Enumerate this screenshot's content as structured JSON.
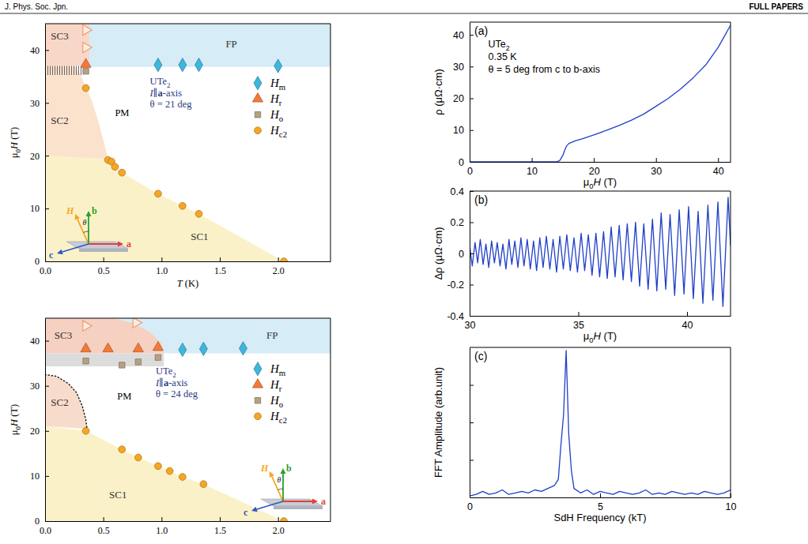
{
  "header": {
    "journal": "J. Phys. Soc. Jpn.",
    "section": "FULL PAPERS"
  },
  "chart_data": [
    {
      "type": "scatter",
      "xlabel": "T (K)",
      "ylabel": "μ0H (T)",
      "xlim": [
        0,
        2.45
      ],
      "ylim": [
        0,
        45
      ],
      "xticks": [
        {
          "value": 0,
          "label": "0.0"
        },
        0.5,
        {
          "value": 1,
          "label": "1.0"
        },
        1.5,
        {
          "value": 2,
          "label": "2.0"
        }
      ],
      "yticks": [
        0,
        10,
        20,
        30,
        40
      ],
      "legend": "right",
      "regions": [
        {
          "name": "SC1",
          "color": "#fbf1c8",
          "x": [
            0,
            0,
            0.54,
            0.6,
            0.66,
            0.97,
            1.18,
            1.32,
            2.05
          ],
          "y": [
            0,
            20,
            19.4,
            18,
            16.8,
            12.8,
            10.5,
            9.0,
            0
          ],
          "label_at": [
            1.25,
            4
          ]
        },
        {
          "name": "SC2",
          "color": "#fbe2cc",
          "x": [
            0,
            0.54,
            0.5,
            0.45,
            0.4,
            0.35,
            0.3,
            0.25,
            0
          ],
          "y": [
            20,
            19.4,
            23,
            27,
            30.5,
            33,
            35.5,
            37,
            37
          ],
          "label_at": [
            0.05,
            26
          ]
        },
        {
          "name": "SC3",
          "color": "#f8d7c8",
          "x": [
            0,
            0.38,
            0.38,
            0
          ],
          "y": [
            37,
            37,
            45,
            45
          ],
          "label_at": [
            0.05,
            42
          ]
        },
        {
          "name": "FP",
          "color": "#d6ecf7",
          "x": [
            0.38,
            2.45,
            2.45,
            0.38
          ],
          "y": [
            36.8,
            36.8,
            45,
            45
          ],
          "label_at": [
            1.55,
            40.5
          ]
        },
        {
          "type": "hatch",
          "color": "#444444",
          "x": [
            0,
            0.32,
            0.32,
            0
          ],
          "y": [
            35.3,
            35.3,
            37,
            37
          ]
        }
      ],
      "series": [
        {
          "name": "Hm",
          "color": "#3fb6dc",
          "marker": "diamond",
          "x": [
            0.97,
            1.18,
            1.32,
            2.0
          ],
          "values": [
            37.2,
            37.2,
            37.2,
            37.0
          ]
        },
        {
          "name": "Hr",
          "color": "#f47a3a",
          "marker": "triangle-up",
          "x": [
            0.35
          ],
          "values": [
            37.3
          ]
        },
        {
          "name": "Ho",
          "color": "#b7a184",
          "marker": "square",
          "x": [
            0.35
          ],
          "values": [
            36.0
          ]
        },
        {
          "name": "Hc2",
          "color": "#f5a623",
          "marker": "circle",
          "x": [
            0.35,
            0.54,
            0.57,
            0.6,
            0.66,
            0.97,
            1.18,
            1.32,
            2.05
          ],
          "values": [
            32.8,
            19.2,
            18.9,
            17.9,
            16.8,
            12.8,
            10.5,
            9.0,
            0
          ]
        },
        {
          "color": "#ef9a6e",
          "marker": "triangle-right-open",
          "x": [
            0.35,
            0.35
          ],
          "values": [
            43.8,
            40.5
          ]
        }
      ],
      "annotations": [
        {
          "text": "UTe2",
          "x": 0.9,
          "y": 33.5,
          "color": "#2b3a80"
        },
        {
          "text": "I∥a-axis",
          "x": 0.9,
          "y": 31.3,
          "color": "#2b3a80"
        },
        {
          "text": "θ = 21 deg",
          "x": 0.9,
          "y": 29.1,
          "color": "#2b3a80"
        },
        {
          "text": "PM",
          "x": 0.6,
          "y": 27.5
        }
      ],
      "inset": [
        "H",
        "b",
        "c",
        "a",
        "θ"
      ]
    },
    {
      "type": "scatter",
      "ylabel": "μ0H (T)",
      "xlim": [
        0,
        2.45
      ],
      "ylim": [
        0,
        45
      ],
      "xticks": [
        {
          "value": 0,
          "label": "0.0"
        },
        0.5,
        {
          "value": 1,
          "label": "1.0"
        },
        1.5,
        {
          "value": 2,
          "label": "2.0"
        }
      ],
      "yticks": [
        0,
        10,
        20,
        30,
        40
      ],
      "legend": "right",
      "regions": [
        {
          "name": "SC1",
          "color": "#fbf1c8",
          "x": [
            0,
            0.35,
            0.66,
            0.8,
            0.97,
            1.07,
            1.18,
            1.36,
            2.05,
            0
          ],
          "y": [
            21,
            20,
            15.9,
            14.1,
            12.2,
            11.1,
            9.8,
            8.2,
            0,
            0
          ],
          "label_at": [
            0.55,
            5
          ]
        },
        {
          "name": "SC2",
          "color": "#f8dccb",
          "x": [
            0,
            0.1,
            0.2,
            0.27,
            0.32,
            0.35,
            0.36,
            0
          ],
          "y": [
            32.5,
            32.1,
            30.5,
            28.5,
            25.5,
            22.5,
            20.5,
            21
          ],
          "label_at": [
            0.05,
            25.5
          ]
        },
        {
          "color": "#dcdcdc",
          "x": [
            0,
            1.02,
            1.02,
            0
          ],
          "y": [
            34.3,
            34.3,
            37.2,
            37.2
          ]
        },
        {
          "name": "SC3",
          "color": "#f6d0c1",
          "x": [
            0,
            1.02,
            1.0,
            0.9,
            0.75,
            0.6,
            0
          ],
          "y": [
            37.2,
            37.2,
            39.5,
            42,
            44,
            45,
            45
          ],
          "label_at": [
            0.08,
            40.5
          ]
        },
        {
          "name": "FP",
          "color": "#d6ecf7",
          "x": [
            1.02,
            2.45,
            2.45,
            0.6,
            0.75,
            0.9,
            1.0
          ],
          "y": [
            37.2,
            37.2,
            45,
            45,
            44,
            42,
            39.5
          ],
          "label_at": [
            1.9,
            40.5
          ]
        }
      ],
      "series": [
        {
          "name": "Hm",
          "color": "#3fb6dc",
          "marker": "diamond",
          "x": [
            1.18,
            1.36,
            1.7
          ],
          "values": [
            38.0,
            38.2,
            38.3
          ]
        },
        {
          "name": "Hr",
          "color": "#f47a3a",
          "marker": "triangle-up",
          "x": [
            0.35,
            0.54,
            0.8,
            0.97
          ],
          "values": [
            38.2,
            38.2,
            38.2,
            38.5
          ]
        },
        {
          "name": "Ho",
          "color": "#b7a184",
          "marker": "square",
          "x": [
            0.35,
            0.66,
            0.8,
            0.97
          ],
          "values": [
            35.5,
            34.6,
            35.3,
            36.3
          ]
        },
        {
          "name": "Hc2",
          "color": "#f5a623",
          "marker": "circle",
          "x": [
            0.35,
            0.66,
            0.8,
            0.97,
            1.07,
            1.18,
            1.36,
            2.05
          ],
          "values": [
            20,
            15.9,
            14.1,
            12.2,
            11.1,
            9.8,
            8.2,
            0
          ]
        },
        {
          "color": "#ef9a6e",
          "marker": "triangle-right-open",
          "x": [
            0.35,
            0.78
          ],
          "values": [
            43.3,
            44.0
          ]
        },
        {
          "type": "line",
          "line_style": "dotted",
          "color": "#222222",
          "x": [
            0,
            0.1,
            0.2,
            0.27,
            0.32,
            0.35,
            0.36
          ],
          "values": [
            32.5,
            32.1,
            30.5,
            28.5,
            25.5,
            22.5,
            20.5
          ]
        }
      ],
      "annotations": [
        {
          "text": "UTe2",
          "x": 0.95,
          "y": 32.5,
          "color": "#2b3a80"
        },
        {
          "text": "I∥a-axis",
          "x": 0.95,
          "y": 30.0,
          "color": "#2b3a80"
        },
        {
          "text": "θ = 24 deg",
          "x": 0.95,
          "y": 27.5,
          "color": "#2b3a80"
        },
        {
          "text": "PM",
          "x": 0.62,
          "y": 27
        }
      ],
      "inset": [
        "H",
        "b",
        "c",
        "a",
        "θ"
      ]
    },
    {
      "type": "line",
      "label": "(a)",
      "xlabel": "μ0H (T)",
      "ylabel": "ρ (μΩ·cm)",
      "xlim": [
        0,
        42
      ],
      "ylim": [
        0,
        44
      ],
      "xticks": [
        0,
        10,
        20,
        30,
        40
      ],
      "yticks": [
        0,
        10,
        20,
        30,
        40
      ],
      "series": [
        {
          "color": "#1f3fc8",
          "x": [
            0,
            5,
            10,
            14,
            14.5,
            15,
            15.3,
            15.6,
            16,
            17,
            18,
            20,
            22,
            24,
            26,
            28,
            30,
            32,
            34,
            36,
            38,
            40,
            41,
            42
          ],
          "values": [
            0,
            0,
            0,
            0,
            0.4,
            2.0,
            3.6,
            5.0,
            5.8,
            6.6,
            7.2,
            8.5,
            9.9,
            11.4,
            13.1,
            15.0,
            17.5,
            20.0,
            23.0,
            26.5,
            30.5,
            36.0,
            39.5,
            43.0
          ]
        }
      ],
      "annotations": [
        {
          "text": "UTe2",
          "x": 3.0,
          "y": 36
        },
        {
          "text": "0.35 K",
          "x": 3.0,
          "y": 32
        },
        {
          "text": "θ = 5 deg from c to b-axis",
          "x": 3.0,
          "y": 28
        }
      ]
    },
    {
      "type": "line",
      "label": "(b)",
      "xlabel": "μ0H (T)",
      "ylabel": "Δρ (μΩ·cm)",
      "xlim": [
        30,
        42
      ],
      "ylim": [
        -0.4,
        0.4
      ],
      "xticks": [
        30,
        35,
        40
      ],
      "yticks": [
        -0.4,
        -0.2,
        0,
        0.2,
        0.4
      ],
      "series": [
        {
          "color": "#1f3fc8",
          "x": [
            30.0,
            30.12,
            30.25,
            30.37,
            30.49,
            30.62,
            30.75,
            30.88,
            31.01,
            31.14,
            31.27,
            31.4,
            31.53,
            31.67,
            31.81,
            31.94,
            32.08,
            32.22,
            32.36,
            32.5,
            32.65,
            32.79,
            32.94,
            33.08,
            33.23,
            33.38,
            33.53,
            33.69,
            33.84,
            34.0,
            34.15,
            34.31,
            34.47,
            34.63,
            34.8,
            34.96,
            35.13,
            35.29,
            35.46,
            35.63,
            35.81,
            35.98,
            36.16,
            36.33,
            36.51,
            36.69,
            36.88,
            37.06,
            37.25,
            37.44,
            37.63,
            37.82,
            38.01,
            38.21,
            38.41,
            38.61,
            38.81,
            39.02,
            39.22,
            39.43,
            39.64,
            39.86,
            40.07,
            40.29,
            40.51,
            40.73,
            40.96,
            41.19,
            41.42,
            41.65,
            41.89,
            42.0
          ],
          "values": [
            0.05,
            -0.08,
            0.07,
            -0.06,
            0.09,
            -0.07,
            0.06,
            -0.09,
            0.08,
            -0.06,
            0.07,
            -0.08,
            0.06,
            -0.1,
            0.09,
            -0.07,
            0.08,
            -0.09,
            0.1,
            -0.08,
            0.09,
            -0.1,
            0.08,
            -0.11,
            0.1,
            -0.09,
            0.11,
            -0.1,
            0.09,
            -0.12,
            0.11,
            -0.1,
            0.12,
            -0.11,
            0.1,
            -0.12,
            0.13,
            -0.11,
            0.12,
            -0.14,
            0.13,
            -0.15,
            0.14,
            -0.16,
            0.17,
            -0.15,
            0.18,
            -0.17,
            0.19,
            -0.18,
            0.2,
            -0.21,
            0.19,
            -0.23,
            0.22,
            -0.24,
            0.26,
            -0.23,
            0.25,
            -0.27,
            0.28,
            -0.26,
            0.3,
            -0.29,
            0.27,
            -0.32,
            0.31,
            -0.3,
            0.33,
            -0.34,
            0.36,
            0.05
          ]
        }
      ]
    },
    {
      "type": "line",
      "label": "(c)",
      "xlabel": "SdH Frequency (kT)",
      "ylabel": "FFT Amplitude (arb.unit)",
      "xlim": [
        0,
        10
      ],
      "ylim": [
        0,
        1
      ],
      "xticks": [
        0,
        5,
        10
      ],
      "yticks": [
        0.25,
        0.5,
        0.75
      ],
      "tick_labels": "x",
      "series": [
        {
          "color": "#1f3fc8",
          "x": [
            0,
            0.25,
            0.5,
            0.75,
            1,
            1.25,
            1.5,
            1.75,
            2,
            2.25,
            2.5,
            2.75,
            3,
            3.25,
            3.4,
            3.5,
            3.6,
            3.7,
            3.8,
            3.9,
            4,
            4.25,
            4.5,
            4.75,
            5,
            5.25,
            5.5,
            5.75,
            6,
            6.25,
            6.5,
            6.75,
            7,
            7.25,
            7.5,
            7.75,
            8,
            8.25,
            8.5,
            8.75,
            9,
            9.25,
            9.5,
            9.75,
            10
          ],
          "values": [
            0.01,
            0.02,
            0.04,
            0.02,
            0.03,
            0.05,
            0.02,
            0.03,
            0.04,
            0.03,
            0.05,
            0.04,
            0.06,
            0.08,
            0.12,
            0.35,
            0.55,
            0.98,
            0.42,
            0.18,
            0.06,
            0.03,
            0.05,
            0.02,
            0.04,
            0.03,
            0.02,
            0.04,
            0.03,
            0.02,
            0.03,
            0.05,
            0.02,
            0.03,
            0.02,
            0.04,
            0.03,
            0.02,
            0.03,
            0.02,
            0.04,
            0.03,
            0.02,
            0.03,
            0.05
          ]
        }
      ]
    }
  ]
}
